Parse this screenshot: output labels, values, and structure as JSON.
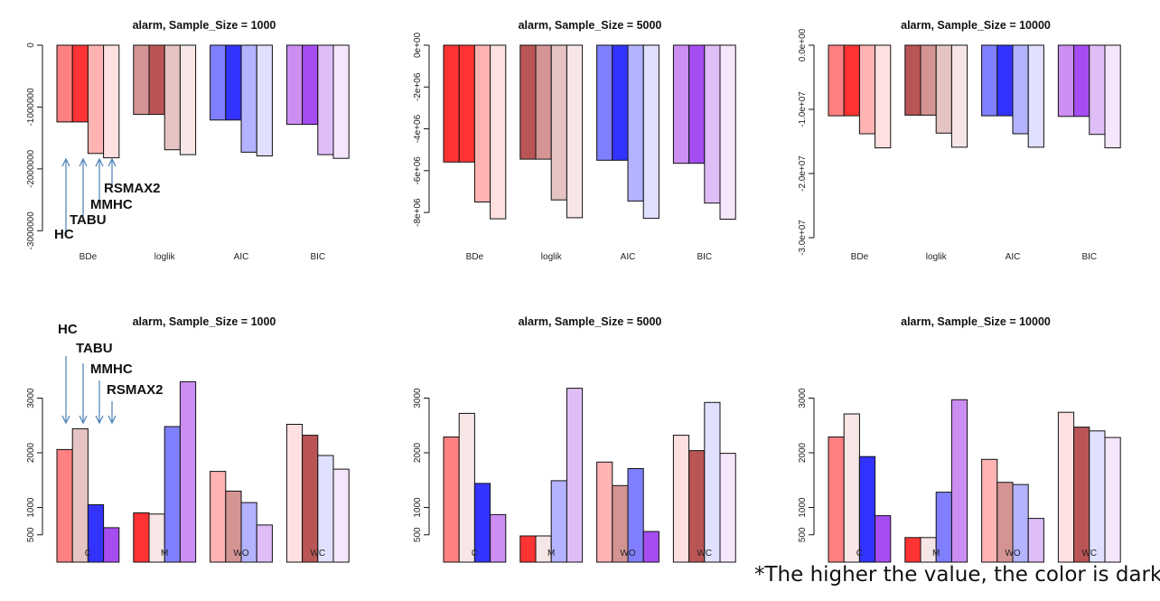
{
  "colors": {
    "red": [
      "#ff8080",
      "#ff3333",
      "#ffb3b3",
      "#ffe0e0"
    ],
    "brown": [
      "#ba5555",
      "#d49494",
      "#e6c4c4",
      "#f7e6e6"
    ],
    "blue": [
      "#7f7fff",
      "#3333ff",
      "#b3b3ff",
      "#e0e0ff"
    ],
    "purple": [
      "#cc8ef2",
      "#a64df2",
      "#dfbdf7",
      "#f5e6fc"
    ]
  },
  "annotations": {
    "top_labels": [
      "HC",
      "TABU",
      "MMHC",
      "RSMAX2"
    ],
    "bottom_labels": [
      "HC",
      "TABU",
      "MMHC",
      "RSMAX2"
    ]
  },
  "footnote": "*The higher the value, the color is dark.",
  "chart_data": [
    {
      "type": "bar",
      "title": "alarm, Sample_Size = 1000",
      "categories": [
        "BDe",
        "loglik",
        "AIC",
        "BIC"
      ],
      "yticks": [
        0,
        -1000000,
        -2000000,
        -3000000
      ],
      "ytick_labels": [
        "0",
        "-1000000",
        "-2000000",
        "-3000000"
      ],
      "ylim": [
        -3200000,
        0
      ],
      "series": [
        {
          "values": [
            -1240000,
            -1120000,
            -1210000,
            -1280000
          ]
        },
        {
          "values": [
            -1240000,
            -1120000,
            -1210000,
            -1280000
          ]
        },
        {
          "values": [
            -1750000,
            -1690000,
            -1730000,
            -1770000
          ]
        },
        {
          "values": [
            -1820000,
            -1770000,
            -1790000,
            -1830000
          ]
        }
      ],
      "colors": [
        [
          "#ff8080",
          "#ff3333",
          "#ffb3b3",
          "#ffe0e0"
        ],
        [
          "#d49494",
          "#ba5555",
          "#e6c4c4",
          "#f7e6e6"
        ],
        [
          "#7f7fff",
          "#3333ff",
          "#b3b3ff",
          "#e0e0ff"
        ],
        [
          "#cc8ef2",
          "#a64df2",
          "#dfbdf7",
          "#f5e6fc"
        ]
      ]
    },
    {
      "type": "bar",
      "title": "alarm, Sample_Size = 5000",
      "categories": [
        "BDe",
        "loglik",
        "AIC",
        "BIC"
      ],
      "yticks": [
        0,
        -2000000,
        -4000000,
        -6000000,
        -8000000
      ],
      "ytick_labels": [
        "0e+00",
        "-2e+06",
        "-4e+06",
        "-6e+06",
        "-8e+06"
      ],
      "ylim": [
        -8600000,
        0
      ],
      "series": [
        {
          "values": [
            -5590000,
            -5450000,
            -5500000,
            -5650000
          ]
        },
        {
          "values": [
            -5590000,
            -5450000,
            -5500000,
            -5650000
          ]
        },
        {
          "values": [
            -7500000,
            -7400000,
            -7450000,
            -7550000
          ]
        },
        {
          "values": [
            -8300000,
            -8250000,
            -8280000,
            -8320000
          ]
        }
      ],
      "colors": [
        [
          "#ff3333",
          "#ff3333",
          "#ffb3b3",
          "#ffe0e0"
        ],
        [
          "#ba5555",
          "#d49494",
          "#e6c4c4",
          "#f7e6e6"
        ],
        [
          "#7f7fff",
          "#3333ff",
          "#b3b3ff",
          "#e0e0ff"
        ],
        [
          "#cc8ef2",
          "#a64df2",
          "#dfbdf7",
          "#f5e6fc"
        ]
      ]
    },
    {
      "type": "bar",
      "title": "alarm, Sample_Size = 10000",
      "categories": [
        "BDe",
        "loglik",
        "AIC",
        "BIC"
      ],
      "yticks": [
        0,
        -10000000,
        -20000000,
        -30000000
      ],
      "ytick_labels": [
        "0.0e+00",
        "-1.0e+07",
        "-2.0e+07",
        "-3.0e+07"
      ],
      "ylim": [
        -30000000,
        0
      ],
      "series": [
        {
          "values": [
            -11000000,
            -10900000,
            -11000000,
            -11100000
          ]
        },
        {
          "values": [
            -11000000,
            -10900000,
            -11000000,
            -11100000
          ]
        },
        {
          "values": [
            -13800000,
            -13700000,
            -13800000,
            -13900000
          ]
        },
        {
          "values": [
            -16000000,
            -15900000,
            -15900000,
            -16000000
          ]
        }
      ],
      "colors": [
        [
          "#ff8080",
          "#ff3333",
          "#ffb3b3",
          "#ffe0e0"
        ],
        [
          "#ba5555",
          "#d49494",
          "#e6c4c4",
          "#f7e6e6"
        ],
        [
          "#7f7fff",
          "#3333ff",
          "#b3b3ff",
          "#e0e0ff"
        ],
        [
          "#cc8ef2",
          "#a64df2",
          "#dfbdf7",
          "#f5e6fc"
        ]
      ]
    },
    {
      "type": "bar",
      "title": "alarm, Sample_Size = 1000",
      "categories": [
        "C",
        "M",
        "WO",
        "WC"
      ],
      "yticks": [
        500,
        1000,
        2000,
        3000
      ],
      "ytick_labels": [
        "500",
        "1000",
        "2000",
        "3000"
      ],
      "ylim": [
        0,
        3520
      ],
      "series": [
        {
          "values": [
            2060,
            900,
            1660,
            2520
          ]
        },
        {
          "values": [
            2440,
            880,
            1300,
            2320
          ]
        },
        {
          "values": [
            1050,
            2480,
            1090,
            1950
          ]
        },
        {
          "values": [
            630,
            3300,
            680,
            1700
          ]
        }
      ],
      "colors": [
        [
          "#ff8080",
          "#e6c4c4",
          "#3333ff",
          "#a64df2"
        ],
        [
          "#ff3333",
          "#f7e6e6",
          "#7f7fff",
          "#cc8ef2"
        ],
        [
          "#ffb3b3",
          "#d49494",
          "#b3b3ff",
          "#dfbdf7"
        ],
        [
          "#ffe0e0",
          "#ba5555",
          "#e0e0ff",
          "#f5e6fc"
        ]
      ]
    },
    {
      "type": "bar",
      "title": "alarm, Sample_Size = 5000",
      "categories": [
        "C",
        "M",
        "WO",
        "WC"
      ],
      "yticks": [
        500,
        1000,
        2000,
        3000
      ],
      "ytick_labels": [
        "500",
        "1000",
        "2000",
        "3000"
      ],
      "ylim": [
        0,
        3520
      ],
      "series": [
        {
          "values": [
            2290,
            480,
            1830,
            2320
          ]
        },
        {
          "values": [
            2720,
            480,
            1400,
            2040
          ]
        },
        {
          "values": [
            1440,
            1490,
            1710,
            2920
          ]
        },
        {
          "values": [
            870,
            3180,
            560,
            1990
          ]
        }
      ],
      "colors": [
        [
          "#ff8080",
          "#f7e6e6",
          "#3333ff",
          "#cc8ef2"
        ],
        [
          "#ff3333",
          "#f7e6e6",
          "#b3b3ff",
          "#dfbdf7"
        ],
        [
          "#ffb3b3",
          "#d49494",
          "#7f7fff",
          "#a64df2"
        ],
        [
          "#ffe0e0",
          "#ba5555",
          "#e0e0ff",
          "#f5e6fc"
        ]
      ]
    },
    {
      "type": "bar",
      "title": "alarm, Sample_Size = 10000",
      "categories": [
        "C",
        "M",
        "WO",
        "WC"
      ],
      "yticks": [
        500,
        1000,
        2000,
        3000
      ],
      "ytick_labels": [
        "500",
        "1000",
        "2000",
        "3000"
      ],
      "ylim": [
        0,
        3520
      ],
      "series": [
        {
          "values": [
            2290,
            450,
            1880,
            2740
          ]
        },
        {
          "values": [
            2710,
            450,
            1460,
            2470
          ]
        },
        {
          "values": [
            1930,
            1280,
            1420,
            2400
          ]
        },
        {
          "values": [
            850,
            2970,
            800,
            2280
          ]
        }
      ],
      "colors": [
        [
          "#ff8080",
          "#f7e6e6",
          "#3333ff",
          "#a64df2"
        ],
        [
          "#ff3333",
          "#f7e6e6",
          "#7f7fff",
          "#cc8ef2"
        ],
        [
          "#ffb3b3",
          "#d49494",
          "#b3b3ff",
          "#dfbdf7"
        ],
        [
          "#ffe0e0",
          "#ba5555",
          "#e0e0ff",
          "#f5e6fc"
        ]
      ]
    }
  ]
}
